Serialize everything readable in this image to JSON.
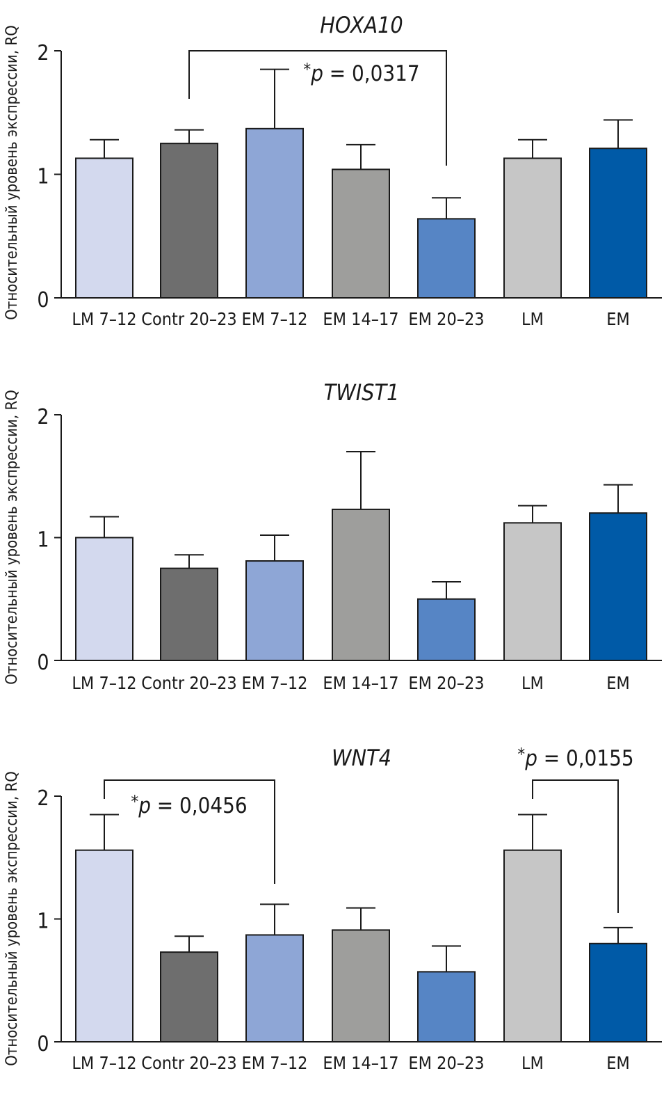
{
  "chart_data": [
    {
      "type": "bar",
      "title": "HOXA10",
      "ylabel": "Относительный уровень экспрессии, RQ",
      "xlabel": "",
      "categories": [
        "LM 7–12",
        "Contr 20–23",
        "EM 7–12",
        "EM 14–17",
        "EM 20–23",
        "LM",
        "EM"
      ],
      "values": [
        1.13,
        1.25,
        1.37,
        1.04,
        0.64,
        1.13,
        1.21
      ],
      "error_upper": [
        1.28,
        1.36,
        1.85,
        1.24,
        0.81,
        1.28,
        1.44
      ],
      "colors": [
        "#d3d9ee",
        "#6e6e6e",
        "#8ea6d6",
        "#9e9e9c",
        "#5685c5",
        "#c6c6c6",
        "#005aa7"
      ],
      "ylim": [
        0,
        2
      ],
      "yticks": [
        "0",
        "1",
        "2"
      ],
      "grid": false,
      "annotations": [
        {
          "from": 1,
          "to": 4,
          "star": "*",
          "p": "p",
          "rest": " = 0,0317"
        }
      ]
    },
    {
      "type": "bar",
      "title": "TWIST1",
      "ylabel": "Относительный уровень экспрессии, RQ",
      "xlabel": "",
      "categories": [
        "LM 7–12",
        "Contr 20–23",
        "EM 7–12",
        "EM 14–17",
        "EM 20–23",
        "LM",
        "EM"
      ],
      "values": [
        1.0,
        0.75,
        0.81,
        1.23,
        0.5,
        1.12,
        1.2
      ],
      "error_upper": [
        1.17,
        0.86,
        1.02,
        1.7,
        0.64,
        1.26,
        1.43
      ],
      "colors": [
        "#d3d9ee",
        "#6e6e6e",
        "#8ea6d6",
        "#9e9e9c",
        "#5685c5",
        "#c6c6c6",
        "#005aa7"
      ],
      "ylim": [
        0,
        2
      ],
      "yticks": [
        "0",
        "1",
        "2"
      ],
      "grid": false,
      "annotations": []
    },
    {
      "type": "bar",
      "title": "WNT4",
      "ylabel": "Относительный уровень экспрессии, RQ",
      "xlabel": "",
      "categories": [
        "LM 7–12",
        "Contr 20–23",
        "EM 7–12",
        "EM 14–17",
        "EM 20–23",
        "LM",
        "EM"
      ],
      "values": [
        1.56,
        0.73,
        0.87,
        0.91,
        0.57,
        1.56,
        0.8
      ],
      "error_upper": [
        1.85,
        0.86,
        1.12,
        1.09,
        0.78,
        1.85,
        0.93
      ],
      "colors": [
        "#d3d9ee",
        "#6e6e6e",
        "#8ea6d6",
        "#9e9e9c",
        "#5685c5",
        "#c6c6c6",
        "#005aa7"
      ],
      "ylim": [
        0,
        2
      ],
      "yticks": [
        "0",
        "1",
        "2"
      ],
      "grid": false,
      "annotations": [
        {
          "from": 0,
          "to": 2,
          "star": "*",
          "p": "p",
          "rest": " = 0,0456"
        },
        {
          "from": 5,
          "to": 6,
          "star": "*",
          "p": "p",
          "rest": " = 0,0155"
        }
      ]
    }
  ]
}
